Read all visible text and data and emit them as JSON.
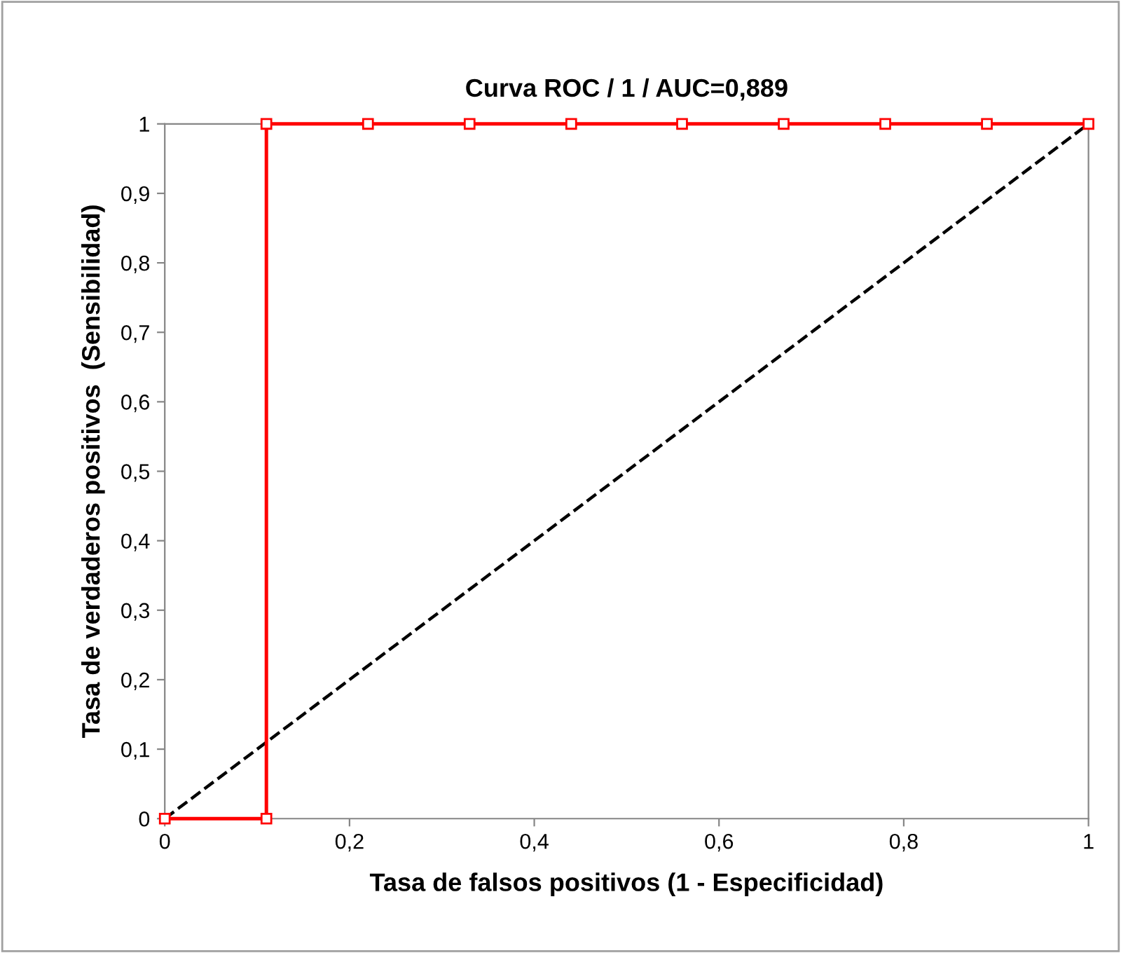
{
  "chart_data": {
    "type": "line",
    "title": "Curva ROC / 1 / AUC=0,889",
    "xlabel": "Tasa de falsos positivos (1 - Especificidad)",
    "ylabel": "Tasa de verdaderos positivos  (Sensibilidad)",
    "series": [
      {
        "x": [
          0,
          0.11,
          0.11,
          0.22,
          0.33,
          0.44,
          0.56,
          0.67,
          0.78,
          0.89,
          1
        ],
        "values": [
          0,
          0,
          1,
          1,
          1,
          1,
          1,
          1,
          1,
          1,
          1
        ],
        "color": "#ff0000",
        "marker": "square",
        "line_style": "solid"
      },
      {
        "x": [
          0,
          1
        ],
        "values": [
          0,
          1
        ],
        "color": "#000000",
        "marker": "none",
        "line_style": "dashed"
      }
    ],
    "xlim": [
      0,
      1
    ],
    "ylim": [
      0,
      1
    ],
    "xticks": [
      0,
      {
        "value": 0.2,
        "label": "0,2"
      },
      {
        "value": 0.4,
        "label": "0,4"
      },
      {
        "value": 0.6,
        "label": "0,6"
      },
      {
        "value": 0.8,
        "label": "0,8"
      },
      1
    ],
    "yticks": [
      0,
      {
        "value": 0.1,
        "label": "0,1"
      },
      {
        "value": 0.2,
        "label": "0,2"
      },
      {
        "value": 0.3,
        "label": "0,3"
      },
      {
        "value": 0.4,
        "label": "0,4"
      },
      {
        "value": 0.5,
        "label": "0,5"
      },
      {
        "value": 0.6,
        "label": "0,6"
      },
      {
        "value": 0.7,
        "label": "0,7"
      },
      {
        "value": 0.8,
        "label": "0,8"
      },
      {
        "value": 0.9,
        "label": "0,9"
      },
      1
    ],
    "grid": false,
    "legend": false
  }
}
